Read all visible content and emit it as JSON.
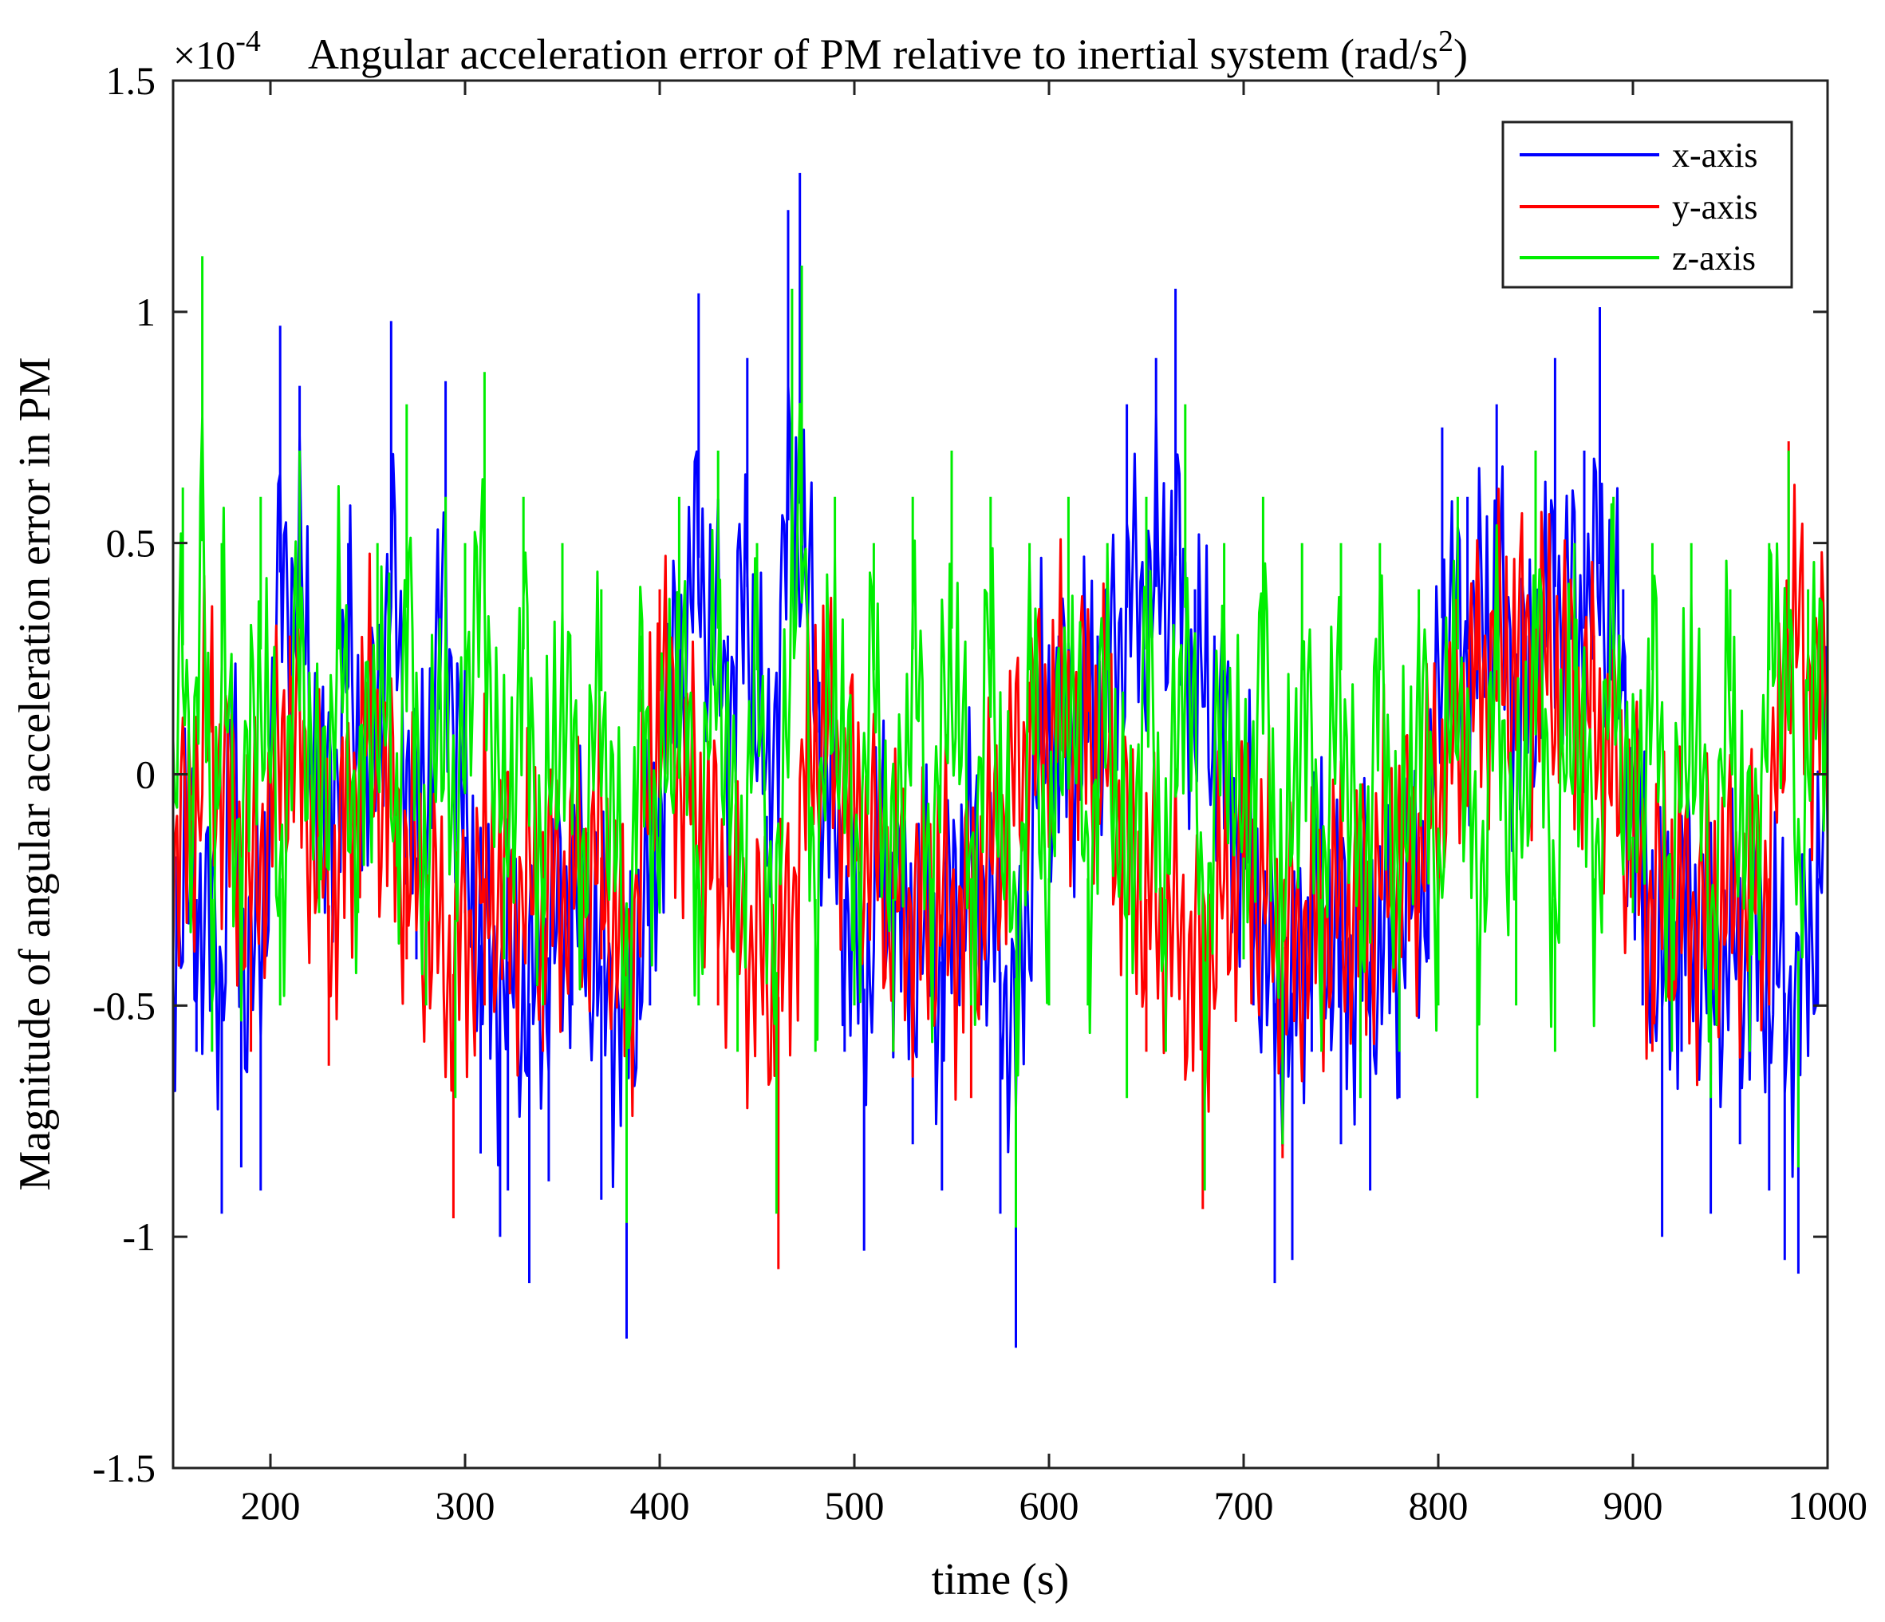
{
  "chart_data": {
    "type": "line",
    "title": "Angular acceleration error of PM relative to inertial system (rad/s",
    "title_superscript": "2",
    "title_suffix": ")",
    "scale_factor": {
      "prefix": "×10",
      "exponent": "-4"
    },
    "xlabel": "time (s)",
    "ylabel": "Magnitude of angular acceleration error in PM",
    "xlim": [
      150,
      1000
    ],
    "ylim": [
      -1.5,
      1.5
    ],
    "x_ticks": [
      200,
      300,
      400,
      500,
      600,
      700,
      800,
      900,
      1000
    ],
    "x_tick_labels": [
      "200",
      "300",
      "400",
      "500",
      "600",
      "700",
      "800",
      "900",
      "1000"
    ],
    "y_ticks": [
      -1.5,
      -1,
      -0.5,
      0,
      0.5,
      1,
      1.5
    ],
    "y_tick_labels": [
      "-1.5",
      "-1",
      "-0.5",
      "0",
      "0.5",
      "1",
      "1.5"
    ],
    "grid": false,
    "legend_position": "top-right",
    "sample_step": 1,
    "series": [
      {
        "name": "x-axis",
        "color": "#0000ff",
        "points": [
          [
            150,
            -0.7
          ],
          [
            162,
            -0.6
          ],
          [
            175,
            -0.95
          ],
          [
            180,
            0.2
          ],
          [
            185,
            -0.85
          ],
          [
            195,
            -0.9
          ],
          [
            205,
            0.97
          ],
          [
            215,
            0.84
          ],
          [
            228,
            -0.3
          ],
          [
            240,
            0.5
          ],
          [
            250,
            -0.1
          ],
          [
            262,
            0.98
          ],
          [
            275,
            -0.4
          ],
          [
            290,
            0.85
          ],
          [
            300,
            -0.3
          ],
          [
            308,
            -0.82
          ],
          [
            318,
            -1.0
          ],
          [
            322,
            -0.9
          ],
          [
            333,
            -1.1
          ],
          [
            343,
            -0.88
          ],
          [
            355,
            -0.5
          ],
          [
            370,
            -0.92
          ],
          [
            383,
            -1.22
          ],
          [
            395,
            -0.5
          ],
          [
            405,
            0.3
          ],
          [
            420,
            1.04
          ],
          [
            435,
            0.3
          ],
          [
            445,
            0.9
          ],
          [
            455,
            -0.2
          ],
          [
            466,
            1.22
          ],
          [
            472,
            1.3
          ],
          [
            482,
            0.2
          ],
          [
            495,
            -0.6
          ],
          [
            505,
            -1.03
          ],
          [
            515,
            -0.4
          ],
          [
            530,
            -0.8
          ],
          [
            545,
            -0.9
          ],
          [
            555,
            -0.4
          ],
          [
            565,
            -0.5
          ],
          [
            575,
            -0.95
          ],
          [
            583,
            -1.24
          ],
          [
            595,
            0.1
          ],
          [
            605,
            0.3
          ],
          [
            615,
            0.2
          ],
          [
            625,
            0.3
          ],
          [
            640,
            0.8
          ],
          [
            655,
            0.9
          ],
          [
            665,
            1.05
          ],
          [
            675,
            0.4
          ],
          [
            685,
            0.3
          ],
          [
            695,
            -0.1
          ],
          [
            705,
            -0.5
          ],
          [
            716,
            -1.1
          ],
          [
            725,
            -1.05
          ],
          [
            735,
            -0.6
          ],
          [
            750,
            -0.8
          ],
          [
            765,
            -0.9
          ],
          [
            780,
            -0.7
          ],
          [
            795,
            -0.4
          ],
          [
            802,
            0.75
          ],
          [
            815,
            0.6
          ],
          [
            830,
            0.8
          ],
          [
            845,
            0.3
          ],
          [
            860,
            0.9
          ],
          [
            875,
            0.7
          ],
          [
            883,
            1.01
          ],
          [
            895,
            0.4
          ],
          [
            905,
            -0.5
          ],
          [
            915,
            -1.0
          ],
          [
            925,
            -0.6
          ],
          [
            940,
            -0.95
          ],
          [
            955,
            -0.8
          ],
          [
            970,
            -0.9
          ],
          [
            978,
            -1.05
          ],
          [
            985,
            -1.08
          ],
          [
            995,
            -0.5
          ],
          [
            1000,
            -0.2
          ]
        ]
      },
      {
        "name": "y-axis",
        "color": "#ff0000",
        "points": [
          [
            150,
            -0.5
          ],
          [
            170,
            0.2
          ],
          [
            190,
            -0.6
          ],
          [
            210,
            0.3
          ],
          [
            230,
            -0.63
          ],
          [
            250,
            0.2
          ],
          [
            270,
            -0.4
          ],
          [
            294,
            -0.96
          ],
          [
            310,
            -0.5
          ],
          [
            340,
            -0.6
          ],
          [
            370,
            -0.4
          ],
          [
            383,
            -0.97
          ],
          [
            400,
            0.4
          ],
          [
            430,
            -0.5
          ],
          [
            461,
            -1.07
          ],
          [
            480,
            0.3
          ],
          [
            520,
            -0.6
          ],
          [
            560,
            -0.7
          ],
          [
            590,
            0.2
          ],
          [
            620,
            0.3
          ],
          [
            650,
            -0.6
          ],
          [
            679,
            -0.94
          ],
          [
            700,
            -0.3
          ],
          [
            720,
            -0.83
          ],
          [
            760,
            -0.6
          ],
          [
            790,
            -0.3
          ],
          [
            820,
            0.5
          ],
          [
            850,
            0.6
          ],
          [
            880,
            0.3
          ],
          [
            910,
            -0.6
          ],
          [
            940,
            -0.65
          ],
          [
            970,
            -0.5
          ],
          [
            980,
            0.72
          ],
          [
            1000,
            0.31
          ]
        ]
      },
      {
        "name": "z-axis",
        "color": "#00ee00",
        "points": [
          [
            150,
            -0.3
          ],
          [
            155,
            0.62
          ],
          [
            160,
            -0.1
          ],
          [
            165,
            1.12
          ],
          [
            170,
            -0.6
          ],
          [
            175,
            0.5
          ],
          [
            185,
            -0.4
          ],
          [
            195,
            0.6
          ],
          [
            205,
            -0.5
          ],
          [
            215,
            0.7
          ],
          [
            225,
            -0.3
          ],
          [
            235,
            0.6
          ],
          [
            245,
            -0.3
          ],
          [
            255,
            0.5
          ],
          [
            265,
            -0.2
          ],
          [
            270,
            0.8
          ],
          [
            280,
            -0.5
          ],
          [
            290,
            0.6
          ],
          [
            295,
            -0.7
          ],
          [
            300,
            0.5
          ],
          [
            310,
            0.87
          ],
          [
            320,
            -0.4
          ],
          [
            330,
            0.6
          ],
          [
            340,
            -0.5
          ],
          [
            350,
            0.5
          ],
          [
            360,
            -0.4
          ],
          [
            370,
            0.4
          ],
          [
            383,
            -0.97
          ],
          [
            390,
            0.3
          ],
          [
            400,
            -0.3
          ],
          [
            410,
            0.6
          ],
          [
            420,
            -0.5
          ],
          [
            430,
            0.7
          ],
          [
            440,
            -0.6
          ],
          [
            450,
            0.5
          ],
          [
            460,
            -0.95
          ],
          [
            468,
            1.05
          ],
          [
            473,
            1.1
          ],
          [
            480,
            -0.6
          ],
          [
            490,
            0.6
          ],
          [
            500,
            -0.5
          ],
          [
            510,
            0.5
          ],
          [
            520,
            -0.6
          ],
          [
            530,
            0.6
          ],
          [
            540,
            -0.5
          ],
          [
            550,
            0.7
          ],
          [
            560,
            -0.5
          ],
          [
            570,
            0.6
          ],
          [
            583,
            -0.98
          ],
          [
            590,
            0.5
          ],
          [
            600,
            -0.5
          ],
          [
            610,
            0.6
          ],
          [
            620,
            -0.5
          ],
          [
            630,
            0.5
          ],
          [
            640,
            -0.7
          ],
          [
            650,
            0.6
          ],
          [
            660,
            -0.6
          ],
          [
            670,
            0.8
          ],
          [
            680,
            -0.9
          ],
          [
            690,
            0.5
          ],
          [
            700,
            -0.4
          ],
          [
            710,
            0.6
          ],
          [
            720,
            -0.8
          ],
          [
            730,
            0.5
          ],
          [
            740,
            -0.6
          ],
          [
            750,
            0.5
          ],
          [
            760,
            -0.7
          ],
          [
            770,
            0.5
          ],
          [
            780,
            -0.6
          ],
          [
            790,
            0.4
          ],
          [
            800,
            -0.5
          ],
          [
            810,
            0.6
          ],
          [
            820,
            -0.7
          ],
          [
            830,
            0.5
          ],
          [
            840,
            -0.5
          ],
          [
            850,
            0.7
          ],
          [
            860,
            -0.6
          ],
          [
            870,
            0.5
          ],
          [
            880,
            -0.5
          ],
          [
            890,
            0.6
          ],
          [
            900,
            -0.3
          ],
          [
            910,
            0.5
          ],
          [
            920,
            -0.6
          ],
          [
            930,
            0.5
          ],
          [
            940,
            -0.7
          ],
          [
            950,
            0.4
          ],
          [
            960,
            -0.6
          ],
          [
            970,
            0.5
          ],
          [
            980,
            0.7
          ],
          [
            985,
            -0.85
          ],
          [
            990,
            0.4
          ],
          [
            1000,
            0.3
          ]
        ]
      }
    ]
  }
}
